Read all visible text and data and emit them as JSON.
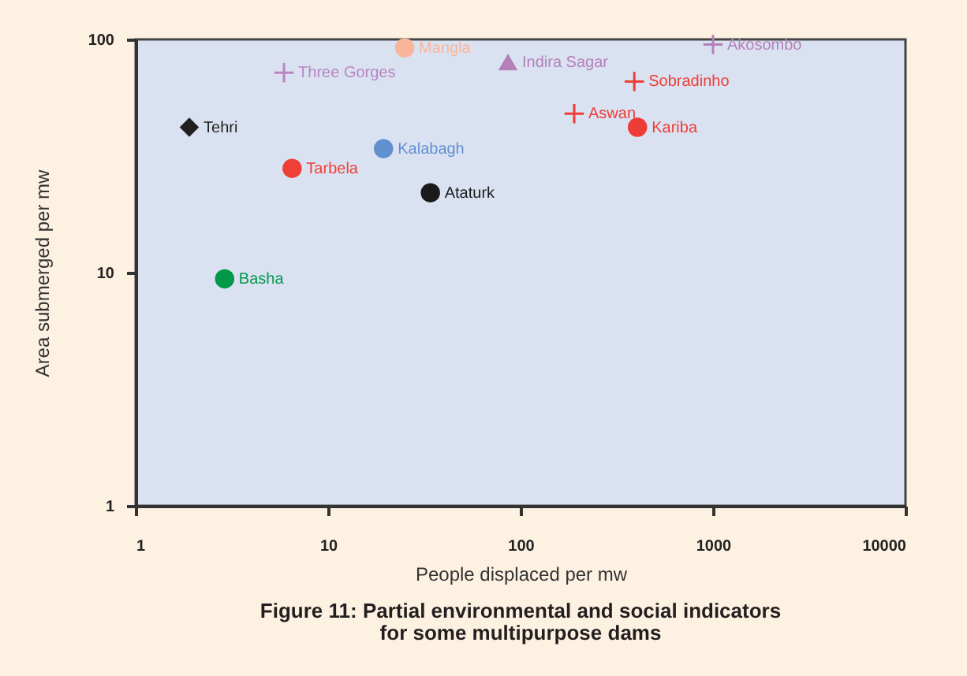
{
  "chart_data": {
    "type": "scatter",
    "title": "Figure  11:  Partial environmental and social indicators\nfor some multipurpose dams",
    "xlabel": "People displaced per mw",
    "ylabel": "Area submerged per mw",
    "log": "xy",
    "xlim": [
      1,
      10000
    ],
    "xticks": [
      1,
      10,
      100,
      1000,
      10000
    ],
    "ylim": [
      1,
      100
    ],
    "yticks": [
      1,
      10,
      100
    ],
    "series": [
      {
        "name": "Tehri",
        "color": "#231f20",
        "marker": "diamond",
        "x": [
          1.9
        ],
        "values": [
          42
        ]
      },
      {
        "name": "Three Gorges",
        "color": "#b985c0",
        "marker": "cross",
        "x": [
          5.9
        ],
        "values": [
          72
        ]
      },
      {
        "name": "Mangla",
        "color": "#f9b59a",
        "marker": "circle",
        "x": [
          25
        ],
        "values": [
          92
        ]
      },
      {
        "name": "Indira Sagar",
        "color": "#b57fb9",
        "marker": "triangle",
        "x": [
          86
        ],
        "values": [
          80
        ]
      },
      {
        "name": "Akosombo",
        "color": "#b57fb9",
        "marker": "cross",
        "x": [
          1000
        ],
        "values": [
          95
        ]
      },
      {
        "name": "Sobradinho",
        "color": "#ee3d36",
        "marker": "cross",
        "x": [
          390
        ],
        "values": [
          66
        ]
      },
      {
        "name": "Aswan",
        "color": "#ee3d36",
        "marker": "cross",
        "x": [
          190
        ],
        "values": [
          48
        ]
      },
      {
        "name": "Kariba",
        "color": "#ee3d36",
        "marker": "circle",
        "x": [
          405
        ],
        "values": [
          42
        ]
      },
      {
        "name": "Kalabagh",
        "color": "#6290cf",
        "marker": "circle",
        "x": [
          19.4
        ],
        "values": [
          34
        ]
      },
      {
        "name": "Tarbela",
        "color": "#ee4036",
        "marker": "circle",
        "x": [
          6.5
        ],
        "values": [
          28
        ]
      },
      {
        "name": "Ataturk",
        "color": "#1a1a1a",
        "marker": "circle",
        "x": [
          34
        ],
        "values": [
          22
        ]
      },
      {
        "name": "Basha",
        "color": "#00994a",
        "marker": "circle",
        "x": [
          2.9
        ],
        "values": [
          9.4
        ]
      }
    ]
  }
}
